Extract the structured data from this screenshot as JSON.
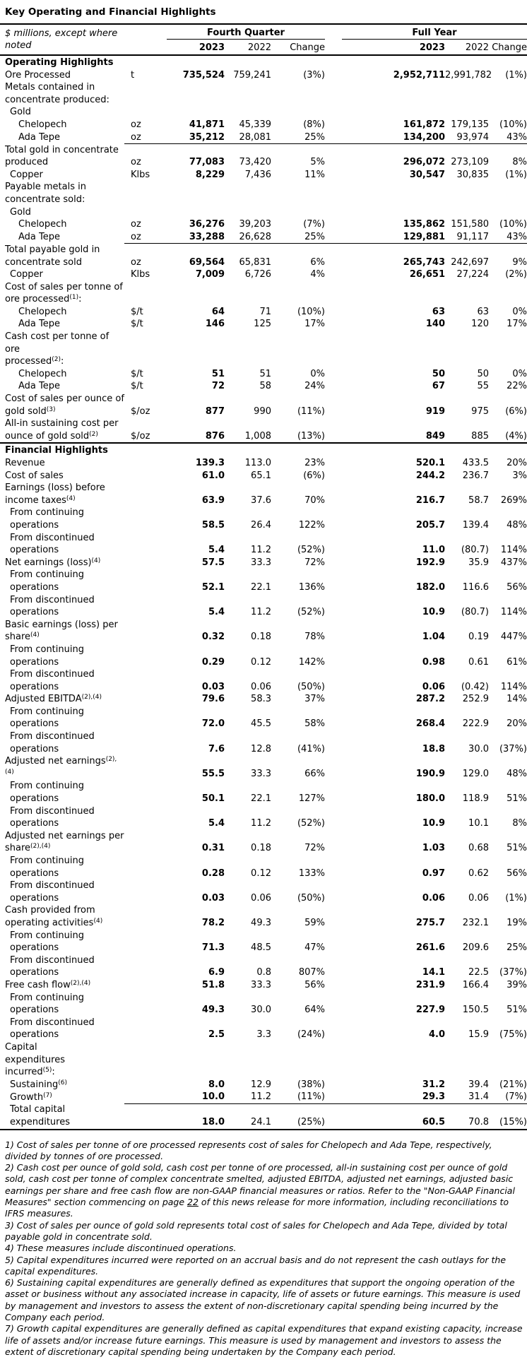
{
  "title": "Key Operating and Financial Highlights",
  "colors": {
    "text": "#000000",
    "background": "#ffffff",
    "rule": "#000000"
  },
  "header": {
    "row_label": "$ millions, except where\nnoted",
    "groups": [
      {
        "label": "Fourth Quarter"
      },
      {
        "label": "Full Year"
      }
    ],
    "columns": [
      "2023",
      "2022",
      "Change",
      "2023",
      "2022",
      "Change"
    ]
  },
  "table": {
    "rows": [
      {
        "label": [
          {
            "t": "Operating Highlights"
          }
        ],
        "section": true
      },
      {
        "label": [
          {
            "t": "Ore Processed"
          }
        ],
        "unit": "t",
        "v": [
          "735,524",
          "759,241",
          "(3%)",
          "2,952,711",
          "2,991,782",
          "(1%)"
        ]
      },
      {
        "label": [
          {
            "t": "Metals contained in\nconcentrate produced:"
          }
        ]
      },
      {
        "label": [
          {
            "t": "Gold"
          }
        ],
        "indent": 1
      },
      {
        "label": [
          {
            "t": "Chelopech"
          }
        ],
        "indent": 2,
        "unit": "oz",
        "v": [
          "41,871",
          "45,339",
          "(8%)",
          "161,872",
          "179,135",
          "(10%)"
        ]
      },
      {
        "label": [
          {
            "t": "Ada Tepe"
          }
        ],
        "indent": 2,
        "unit": "oz",
        "v": [
          "35,212",
          "28,081",
          "25%",
          "134,200",
          "93,974",
          "43%"
        ],
        "rule": "values"
      },
      {
        "label": [
          {
            "t": "Total gold in concentrate\nproduced"
          }
        ],
        "unit": "oz",
        "v": [
          "77,083",
          "73,420",
          "5%",
          "296,072",
          "273,109",
          "8%"
        ]
      },
      {
        "label": [
          {
            "t": "Copper"
          }
        ],
        "indent": 1,
        "unit": "Klbs",
        "v": [
          "8,229",
          "7,436",
          "11%",
          "30,547",
          "30,835",
          "(1%)"
        ]
      },
      {
        "label": [
          {
            "t": "Payable metals in\nconcentrate sold:"
          }
        ]
      },
      {
        "label": [
          {
            "t": "Gold"
          }
        ],
        "indent": 1
      },
      {
        "label": [
          {
            "t": "Chelopech"
          }
        ],
        "indent": 2,
        "unit": "oz",
        "v": [
          "36,276",
          "39,203",
          "(7%)",
          "135,862",
          "151,580",
          "(10%)"
        ]
      },
      {
        "label": [
          {
            "t": "Ada Tepe"
          }
        ],
        "indent": 2,
        "unit": "oz",
        "v": [
          "33,288",
          "26,628",
          "25%",
          "129,881",
          "91,117",
          "43%"
        ],
        "rule": "values"
      },
      {
        "label": [
          {
            "t": "Total payable gold in\nconcentrate sold"
          }
        ],
        "unit": "oz",
        "v": [
          "69,564",
          "65,831",
          "6%",
          "265,743",
          "242,697",
          "9%"
        ]
      },
      {
        "label": [
          {
            "t": "Copper"
          }
        ],
        "indent": 1,
        "unit": "Klbs",
        "v": [
          "7,009",
          "6,726",
          "4%",
          "26,651",
          "27,224",
          "(2%)"
        ]
      },
      {
        "label": [
          {
            "t": "Cost of sales per tonne of\nore processed"
          },
          {
            "t": "(1)",
            "sup": true
          },
          {
            "t": ":"
          }
        ]
      },
      {
        "label": [
          {
            "t": "Chelopech"
          }
        ],
        "indent": 2,
        "unit": "$/t",
        "v": [
          "64",
          "71",
          "(10%)",
          "63",
          "63",
          "0%"
        ]
      },
      {
        "label": [
          {
            "t": "Ada Tepe"
          }
        ],
        "indent": 2,
        "unit": "$/t",
        "v": [
          "146",
          "125",
          "17%",
          "140",
          "120",
          "17%"
        ]
      },
      {
        "label": [
          {
            "t": "Cash cost per tonne of ore\nprocessed"
          },
          {
            "t": "(2)",
            "sup": true
          },
          {
            "t": ":"
          }
        ]
      },
      {
        "label": [
          {
            "t": "Chelopech"
          }
        ],
        "indent": 2,
        "unit": "$/t",
        "v": [
          "51",
          "51",
          "0%",
          "50",
          "50",
          "0%"
        ]
      },
      {
        "label": [
          {
            "t": "Ada Tepe"
          }
        ],
        "indent": 2,
        "unit": "$/t",
        "v": [
          "72",
          "58",
          "24%",
          "67",
          "55",
          "22%"
        ]
      },
      {
        "label": [
          {
            "t": "Cost of sales per ounce of\ngold sold"
          },
          {
            "t": "(3)",
            "sup": true
          }
        ],
        "unit": "$/oz",
        "v": [
          "877",
          "990",
          "(11%)",
          "919",
          "975",
          "(6%)"
        ]
      },
      {
        "label": [
          {
            "t": "All-in sustaining cost per\nounce of gold sold"
          },
          {
            "t": "(2)",
            "sup": true
          }
        ],
        "unit": "$/oz",
        "v": [
          "876",
          "1,008",
          "(13%)",
          "849",
          "885",
          "(4%)"
        ],
        "rule": "full"
      },
      {
        "label": [
          {
            "t": "Financial Highlights"
          }
        ],
        "section": true
      },
      {
        "label": [
          {
            "t": "Revenue"
          }
        ],
        "v": [
          "139.3",
          "113.0",
          "23%",
          "520.1",
          "433.5",
          "20%"
        ]
      },
      {
        "label": [
          {
            "t": "Cost of sales"
          }
        ],
        "v": [
          "61.0",
          "65.1",
          "(6%)",
          "244.2",
          "236.7",
          "3%"
        ]
      },
      {
        "label": [
          {
            "t": "Earnings (loss) before\nincome taxes"
          },
          {
            "t": "(4)",
            "sup": true
          }
        ],
        "v": [
          "63.9",
          "37.6",
          "70%",
          "216.7",
          "58.7",
          "269%"
        ]
      },
      {
        "label": [
          {
            "t": "From continuing\noperations"
          }
        ],
        "indent": 1,
        "v": [
          "58.5",
          "26.4",
          "122%",
          "205.7",
          "139.4",
          "48%"
        ]
      },
      {
        "label": [
          {
            "t": "From discontinued\noperations"
          }
        ],
        "indent": 1,
        "v": [
          "5.4",
          "11.2",
          "(52%)",
          "11.0",
          "(80.7)",
          "114%"
        ]
      },
      {
        "label": [
          {
            "t": "Net earnings (loss)"
          },
          {
            "t": "(4)",
            "sup": true
          }
        ],
        "v": [
          "57.5",
          "33.3",
          "72%",
          "192.9",
          "35.9",
          "437%"
        ]
      },
      {
        "label": [
          {
            "t": "From continuing\noperations"
          }
        ],
        "indent": 1,
        "v": [
          "52.1",
          "22.1",
          "136%",
          "182.0",
          "116.6",
          "56%"
        ]
      },
      {
        "label": [
          {
            "t": "From discontinued\noperations"
          }
        ],
        "indent": 1,
        "v": [
          "5.4",
          "11.2",
          "(52%)",
          "10.9",
          "(80.7)",
          "114%"
        ]
      },
      {
        "label": [
          {
            "t": "Basic earnings (loss) per\nshare"
          },
          {
            "t": "(4)",
            "sup": true
          }
        ],
        "v": [
          "0.32",
          "0.18",
          "78%",
          "1.04",
          "0.19",
          "447%"
        ]
      },
      {
        "label": [
          {
            "t": "From continuing\noperations"
          }
        ],
        "indent": 1,
        "v": [
          "0.29",
          "0.12",
          "142%",
          "0.98",
          "0.61",
          "61%"
        ]
      },
      {
        "label": [
          {
            "t": "From discontinued\noperations"
          }
        ],
        "indent": 1,
        "v": [
          "0.03",
          "0.06",
          "(50%)",
          "0.06",
          "(0.42)",
          "114%"
        ]
      },
      {
        "label": [
          {
            "t": "Adjusted EBITDA"
          },
          {
            "t": "(2),(4)",
            "sup": true
          }
        ],
        "v": [
          "79.6",
          "58.3",
          "37%",
          "287.2",
          "252.9",
          "14%"
        ]
      },
      {
        "label": [
          {
            "t": "From continuing\noperations"
          }
        ],
        "indent": 1,
        "v": [
          "72.0",
          "45.5",
          "58%",
          "268.4",
          "222.9",
          "20%"
        ]
      },
      {
        "label": [
          {
            "t": "From discontinued\noperations"
          }
        ],
        "indent": 1,
        "v": [
          "7.6",
          "12.8",
          "(41%)",
          "18.8",
          "30.0",
          "(37%)"
        ]
      },
      {
        "label": [
          {
            "t": "Adjusted net earnings"
          },
          {
            "t": "(2),(4)",
            "sup": true
          }
        ],
        "v": [
          "55.5",
          "33.3",
          "66%",
          "190.9",
          "129.0",
          "48%"
        ]
      },
      {
        "label": [
          {
            "t": "From continuing\noperations"
          }
        ],
        "indent": 1,
        "v": [
          "50.1",
          "22.1",
          "127%",
          "180.0",
          "118.9",
          "51%"
        ]
      },
      {
        "label": [
          {
            "t": "From discontinued\noperations"
          }
        ],
        "indent": 1,
        "v": [
          "5.4",
          "11.2",
          "(52%)",
          "10.9",
          "10.1",
          "8%"
        ]
      },
      {
        "label": [
          {
            "t": "Adjusted net earnings per\nshare"
          },
          {
            "t": "(2),(4)",
            "sup": true
          }
        ],
        "v": [
          "0.31",
          "0.18",
          "72%",
          "1.03",
          "0.68",
          "51%"
        ]
      },
      {
        "label": [
          {
            "t": "From continuing\noperations"
          }
        ],
        "indent": 1,
        "v": [
          "0.28",
          "0.12",
          "133%",
          "0.97",
          "0.62",
          "56%"
        ]
      },
      {
        "label": [
          {
            "t": "From discontinued\noperations"
          }
        ],
        "indent": 1,
        "v": [
          "0.03",
          "0.06",
          "(50%)",
          "0.06",
          "0.06",
          "(1%)"
        ]
      },
      {
        "label": [
          {
            "t": "Cash provided from\noperating activities"
          },
          {
            "t": "(4)",
            "sup": true
          }
        ],
        "v": [
          "78.2",
          "49.3",
          "59%",
          "275.7",
          "232.1",
          "19%"
        ]
      },
      {
        "label": [
          {
            "t": "From continuing\noperations"
          }
        ],
        "indent": 1,
        "v": [
          "71.3",
          "48.5",
          "47%",
          "261.6",
          "209.6",
          "25%"
        ]
      },
      {
        "label": [
          {
            "t": "From discontinued\noperations"
          }
        ],
        "indent": 1,
        "v": [
          "6.9",
          "0.8",
          "807%",
          "14.1",
          "22.5",
          "(37%)"
        ]
      },
      {
        "label": [
          {
            "t": "Free cash flow"
          },
          {
            "t": "(2),(4)",
            "sup": true
          }
        ],
        "v": [
          "51.8",
          "33.3",
          "56%",
          "231.9",
          "166.4",
          "39%"
        ]
      },
      {
        "label": [
          {
            "t": "From continuing\noperations"
          }
        ],
        "indent": 1,
        "v": [
          "49.3",
          "30.0",
          "64%",
          "227.9",
          "150.5",
          "51%"
        ]
      },
      {
        "label": [
          {
            "t": "From discontinued\noperations"
          }
        ],
        "indent": 1,
        "v": [
          "2.5",
          "3.3",
          "(24%)",
          "4.0",
          "15.9",
          "(75%)"
        ]
      },
      {
        "label": [
          {
            "t": "Capital"
          },
          {
            "gap": 50
          },
          {
            "t": "expenditures"
          },
          {
            "t": "\nincurred"
          },
          {
            "t": "(5)",
            "sup": true
          },
          {
            "t": ":"
          }
        ]
      },
      {
        "label": [
          {
            "t": "Sustaining"
          },
          {
            "t": "(6)",
            "sup": true
          }
        ],
        "indent": 1,
        "v": [
          "8.0",
          "12.9",
          "(38%)",
          "31.2",
          "39.4",
          "(21%)"
        ]
      },
      {
        "label": [
          {
            "t": "Growth"
          },
          {
            "t": "(7)",
            "sup": true
          }
        ],
        "indent": 1,
        "v": [
          "10.0",
          "11.2",
          "(11%)",
          "29.3",
          "31.4",
          "(7%)"
        ],
        "rule": "values"
      },
      {
        "label": [
          {
            "t": "Total capital expenditures"
          }
        ],
        "indent": 1,
        "v": [
          "18.0",
          "24.1",
          "(25%)",
          "60.5",
          "70.8",
          "(15%)"
        ],
        "rule": "full"
      }
    ]
  },
  "footnotes": [
    [
      {
        "t": "1) Cost of sales per tonne of ore processed represents cost of sales for Chelopech and Ada Tepe, respectively, divided by tonnes of ore processed."
      }
    ],
    [
      {
        "t": "2) Cash cost per ounce of gold sold, cash cost per tonne of ore processed, all-in sustaining cost per ounce of gold sold, cash cost per tonne of complex concentrate smelted, adjusted EBITDA, adjusted net earnings, adjusted basic earnings per share and free cash flow are non-GAAP financial measures or ratios. Refer to the \"Non-GAAP Financial Measures\" section commencing on page "
      },
      {
        "t": "22",
        "u": true
      },
      {
        "t": " of this news release for more information, including reconciliations to IFRS measures."
      }
    ],
    [
      {
        "t": "3) Cost of sales per ounce of gold sold represents total cost of sales for Chelopech and Ada Tepe, divided by total payable gold in concentrate sold."
      }
    ],
    [
      {
        "t": "4) These measures include discontinued operations."
      }
    ],
    [
      {
        "t": "5) Capital expenditures incurred were reported on an accrual basis and do not represent the cash outlays for the capital expenditures."
      }
    ],
    [
      {
        "t": "6) Sustaining capital expenditures are generally defined as expenditures that support the ongoing operation of the asset or business without any associated increase in capacity, life of assets or future earnings. This measure is used by management and investors to assess the extent of non-discretionary capital spending being incurred by the Company each period."
      }
    ],
    [
      {
        "t": "7) Growth capital expenditures are generally defined as capital expenditures that expand existing capacity, increase life of assets and/or increase future earnings. This measure is used by management and investors to assess the extent of discretionary capital spending being undertaken by the Company each period."
      }
    ]
  ]
}
